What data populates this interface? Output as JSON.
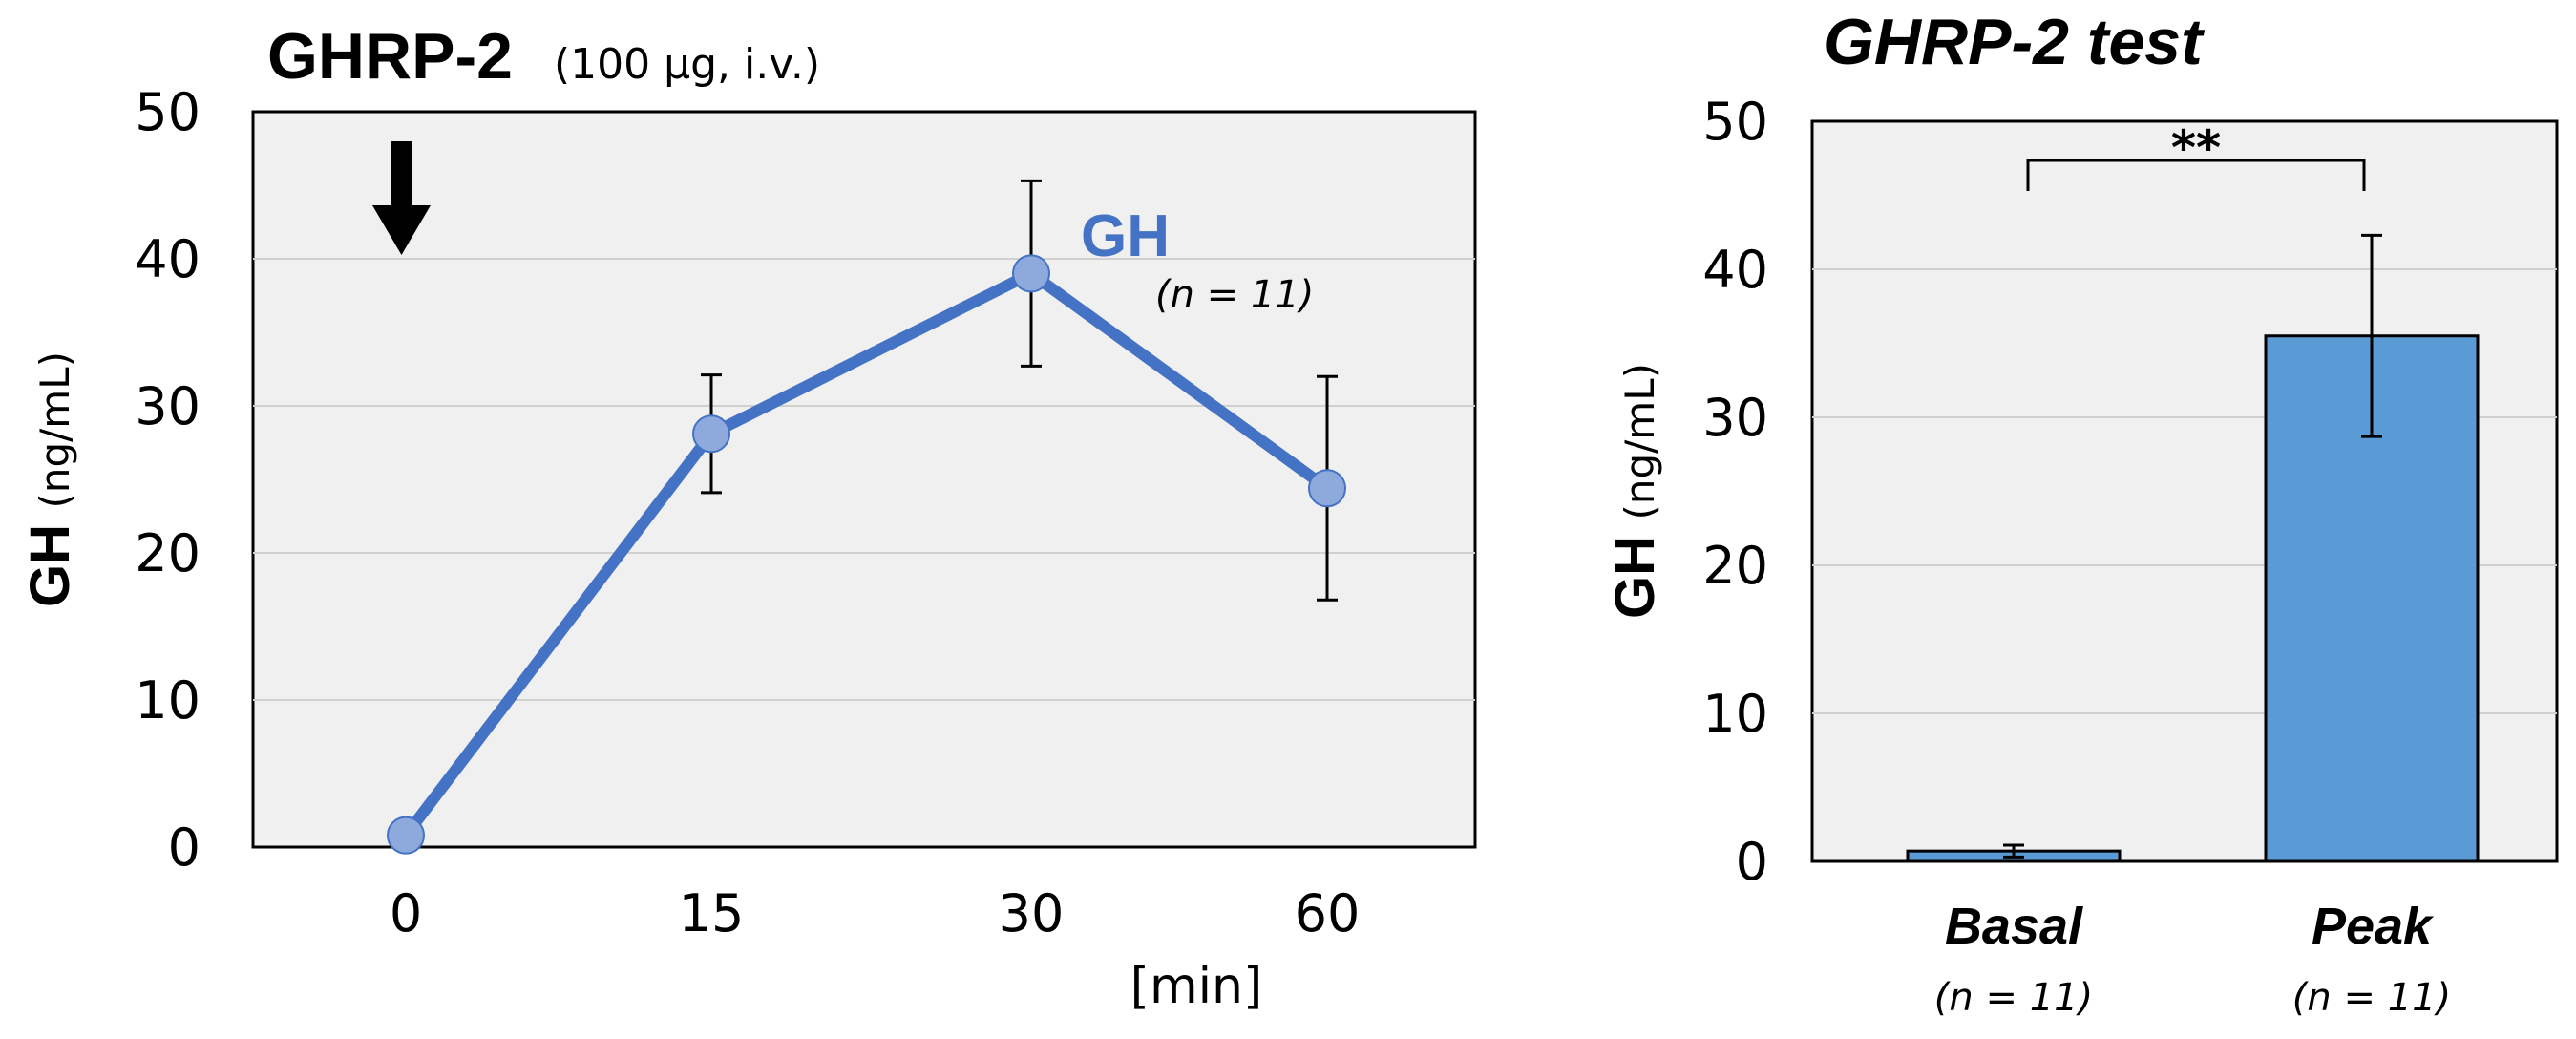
{
  "chart_data": [
    {
      "type": "line",
      "title": "GHRP-2",
      "subtitle": "(100 µg, i.v.)",
      "ylabel": "GH",
      "ylabel_unit": "(ng/mL)",
      "xunit": "[min]",
      "categories": [
        "0",
        "15",
        "30",
        "60"
      ],
      "series": [
        {
          "name": "GH",
          "n_label": "(n = 11)",
          "values": [
            0.8,
            28.1,
            39.0,
            24.4
          ],
          "error": [
            0,
            4.0,
            6.3,
            7.6
          ],
          "color": "#4472C4",
          "marker_color": "#8EA9DB"
        }
      ],
      "ylim": [
        0,
        50
      ],
      "yticks": [
        "0",
        "10",
        "20",
        "30",
        "40",
        "50"
      ],
      "grid": true,
      "annotation": "down-arrow at 0 min (injection)"
    },
    {
      "type": "bar",
      "title": "GHRP-2 test",
      "ylabel": "GH",
      "ylabel_unit": "(ng/mL)",
      "categories": [
        "Basal",
        "Peak"
      ],
      "category_n": [
        "(n = 11)",
        "(n = 11)"
      ],
      "values": [
        0.7,
        35.5
      ],
      "error": [
        0.4,
        6.8
      ],
      "ylim": [
        0,
        50
      ],
      "yticks": [
        "0",
        "10",
        "20",
        "30",
        "40",
        "50"
      ],
      "grid": true,
      "bar_color": "#5B9BD5",
      "significance": "**"
    }
  ]
}
